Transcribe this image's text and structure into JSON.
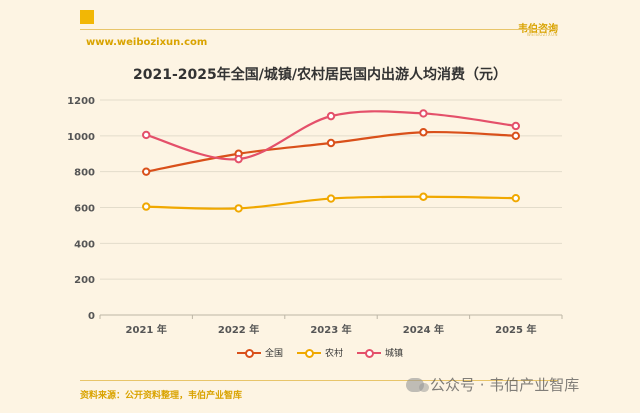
{
  "header": {
    "brand": "韦伯咨询",
    "brand_sub": "WEIBOZIXUN",
    "site_url": "www.weibozixun.com"
  },
  "footer": {
    "source": "资料来源：公开资料整理，韦伯产业智库",
    "watermark": "公众号 · 韦伯产业智库"
  },
  "colors": {
    "national": "#d9501a",
    "rural": "#f0a800",
    "urban": "#e4506a",
    "grid": "#e3dccb",
    "axis_text": "#555555"
  },
  "chart_data": {
    "type": "line",
    "title": "2021-2025年全国/城镇/农村居民国内出游人均消费（元）",
    "categories": [
      "2021 年",
      "2022 年",
      "2023 年",
      "2024 年",
      "2025 年"
    ],
    "ylim": [
      0,
      1200
    ],
    "yticks": [
      0,
      200,
      400,
      600,
      800,
      1000,
      1200
    ],
    "grid": true,
    "legend_position": "bottom",
    "smooth": true,
    "series": [
      {
        "key": "national",
        "name": "全国",
        "values": [
          800,
          900,
          960,
          1020,
          1000
        ]
      },
      {
        "key": "rural",
        "name": "农村",
        "values": [
          605,
          595,
          650,
          660,
          652
        ]
      },
      {
        "key": "urban",
        "name": "城镇",
        "values": [
          1005,
          870,
          1110,
          1125,
          1055
        ]
      }
    ]
  }
}
